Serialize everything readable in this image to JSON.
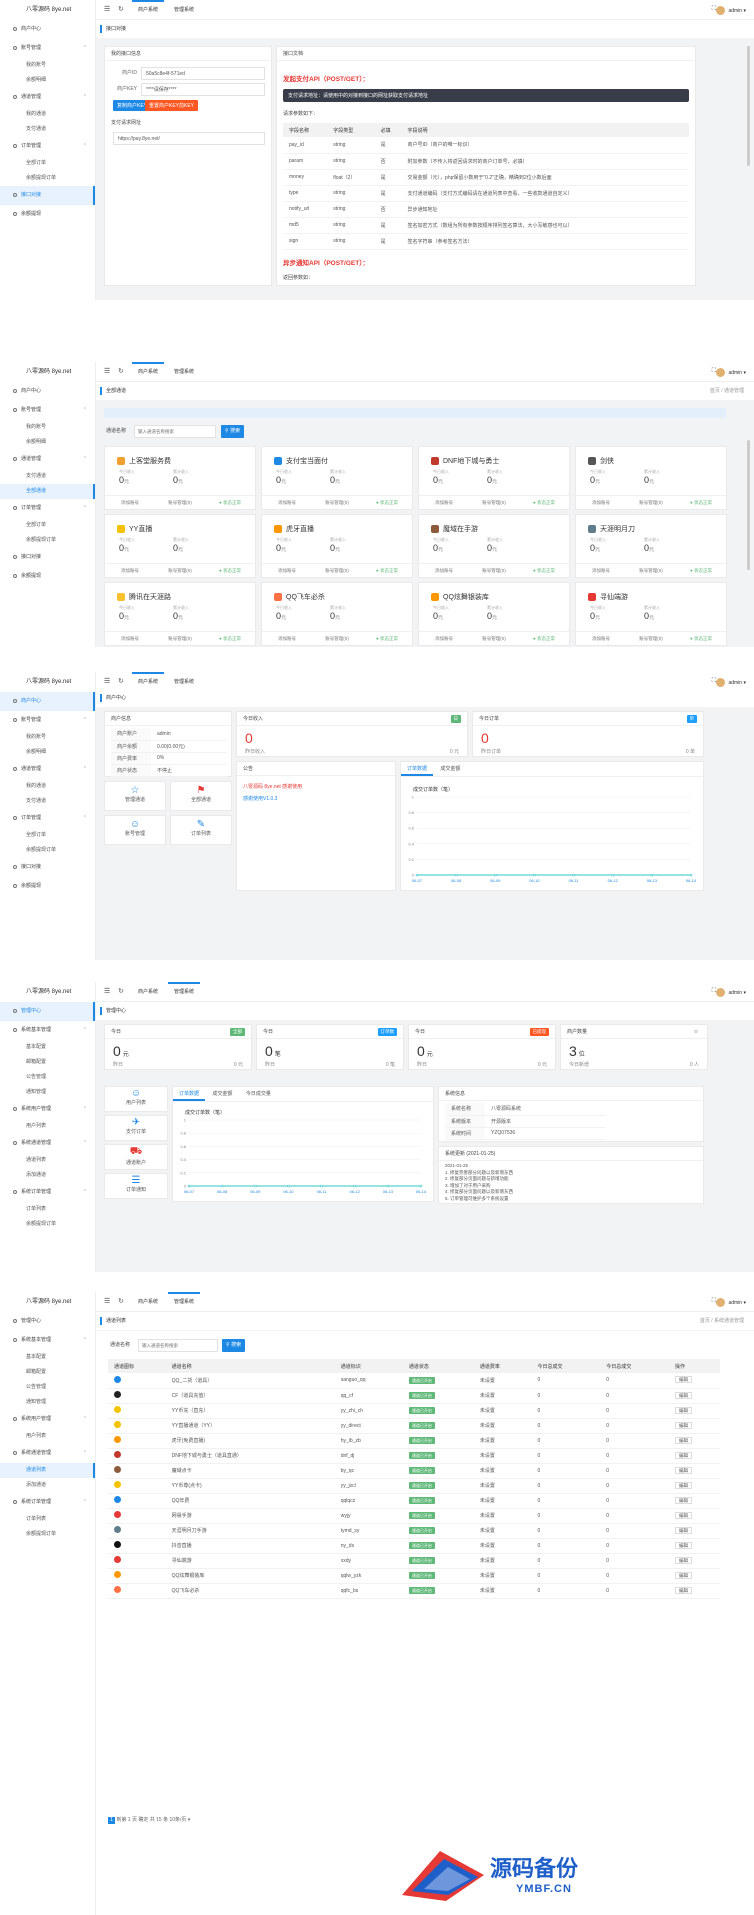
{
  "brand": "八零源码 8ye.net",
  "topbar": {
    "tab_user": "商户系统",
    "tab_admin": "管理系统",
    "user": "admin ▾"
  },
  "p1": {
    "menu": [
      "商户中心",
      "账号管理",
      "我的账号",
      "余额明细",
      "通道管理",
      "我的通道",
      "支付通道",
      "订单管理",
      "全部订单",
      "余额提现订单",
      "接口对接",
      "余额提现"
    ],
    "subheader": "接口对接",
    "info_title": "我的接口信息",
    "merchant_id_label": "商户ID",
    "merchant_id": "50a5c8e4f-571ed",
    "merchant_key_label": "商户KEY",
    "merchant_key": "****请保存****",
    "btn_copy": "复制商户KEY",
    "btn_reset": "重置商户KEY前KEY",
    "addr_title": "支付请求网址",
    "addr": "https://pay.8ye.net/",
    "doc_title": "接口文档",
    "sync_title": "发起支付API（POST/GET）：",
    "note": "支付请求地址：请使用中的对接到接口的网址获取支付请求地址",
    "params_label": "请求参数如下：",
    "cols": [
      "字段名称",
      "字段类型",
      "必填",
      "字段说明"
    ],
    "rows": [
      [
        "pay_id",
        "string",
        "是",
        "商户号ID（商户的唯一标识）"
      ],
      [
        "param",
        "string",
        "否",
        "附加参数（不传入将返回请求时的商户订单号，必填）"
      ],
      [
        "money",
        "float（2）",
        "是",
        "交易金额（元），php保留小数用于\"0.2\"正确，精确到2位小数后面"
      ],
      [
        "type",
        "string",
        "是",
        "支付通道编码（支付方式编码请在通道列表中查看，一些收款通道自定义）"
      ],
      [
        "notify_url",
        "string",
        "否",
        "异步通知地址"
      ],
      [
        "md5",
        "string",
        "是",
        "签名加密方式（数组为所有参数按顺序排列签名算法，大小写敏感也可以）"
      ],
      [
        "sign",
        "string",
        "是",
        "签名字符串（参考签名方法）"
      ]
    ],
    "async_title": "异步通知API（POST/GET）：",
    "async_label": "返回参数如：",
    "async_cols": [
      "字段名称",
      "字段类型",
      "字段说明"
    ]
  },
  "p2": {
    "menu": [
      "商户中心",
      "账号管理",
      "我的账号",
      "余额明细",
      "通道管理",
      "支付通道",
      "全部通道",
      "订单管理",
      "全部订单",
      "余额提现订单",
      "接口对接",
      "余额提现"
    ],
    "subheader": "全部通道",
    "crumb": "首页 / 通道管理",
    "search_label": "通道名称",
    "search_placeholder": "输入通道名称搜索",
    "search_btn": "搜索",
    "card_in_label": "今日收入",
    "card_total_label": "累计收入",
    "unit": "元",
    "footer": [
      "添加账号",
      "账号管理(0)",
      "● 状态正常"
    ],
    "channels": [
      {
        "name": "上客堂服务费",
        "color": "#f0a030",
        "v1": "0",
        "v2": "0"
      },
      {
        "name": "支付宝当面付",
        "color": "#1e88e5",
        "v1": "0",
        "v2": "0"
      },
      {
        "name": "DNF地下城与勇士",
        "color": "#c0392b",
        "v1": "0",
        "v2": "0"
      },
      {
        "name": "剑侠",
        "color": "#555555",
        "v1": "0",
        "v2": "0"
      },
      {
        "name": "YY直播",
        "color": "#f5c200",
        "v1": "0",
        "v2": "0"
      },
      {
        "name": "虎牙直播",
        "color": "#ff9800",
        "v1": "0",
        "v2": "0"
      },
      {
        "name": "魔域在手游",
        "color": "#8e5a3c",
        "v1": "0",
        "v2": "0"
      },
      {
        "name": "天涯明月刀",
        "color": "#607d8b",
        "v1": "0",
        "v2": "0"
      },
      {
        "name": "腾讯在天涯路",
        "color": "#fbc02d",
        "v1": "0",
        "v2": "0"
      },
      {
        "name": "QQ飞车必杀",
        "color": "#ff7043",
        "v1": "0",
        "v2": "0"
      },
      {
        "name": "QQ炫舞银装库",
        "color": "#ff9800",
        "v1": "0",
        "v2": "0"
      },
      {
        "name": "寻仙端游",
        "color": "#e53935",
        "v1": "0",
        "v2": "0"
      }
    ]
  },
  "p3": {
    "menu": [
      "商户中心",
      "账号管理",
      "我的账号",
      "余额明细",
      "通道管理",
      "我的通道",
      "支付通道",
      "订单管理",
      "全部订单",
      "余额提现订单",
      "接口对接",
      "余额提现"
    ],
    "subheader": "商户中心",
    "info_title": "商户信息",
    "info_rows": [
      [
        "商户账户",
        "admin"
      ],
      [
        "商户余额",
        "0.00(0.00元)"
      ],
      [
        "商户费率",
        "0%"
      ],
      [
        "商户状态",
        "不停止"
      ]
    ],
    "quick": [
      "管理通道",
      "全部通道",
      "账号管理",
      "订单列表"
    ],
    "income_title": "今日收入",
    "income_badge": "日",
    "income_val": "0",
    "income_left": "昨日收入",
    "income_right": "0 元",
    "order_title": "今日订单",
    "order_badge": "单",
    "order_val": "0",
    "order_left": "昨日订单",
    "order_right": "0 单",
    "notice_title": "公告",
    "notice_lines": [
      "八零源码 8ye.net 感谢使用",
      "感谢使用V1.0.3"
    ],
    "tabs": [
      "订单数据",
      "成交金额"
    ],
    "chart_data": {
      "type": "line",
      "title": "成交订单数（笔）",
      "categories": [
        "06-07",
        "06-08",
        "06-09",
        "06-10",
        "06-11",
        "06-12",
        "06-13",
        "06-14"
      ],
      "values": [
        0,
        0,
        0,
        0,
        0,
        0,
        0,
        0
      ],
      "ylim": [
        0,
        1
      ],
      "yticks": [
        "0",
        "0.2",
        "0.4",
        "0.6",
        "0.8",
        "1"
      ]
    }
  },
  "p4": {
    "menu": [
      "管理中心",
      "系统基本管理",
      "基本配置",
      "邮箱配置",
      "公告管理",
      "通知管理",
      "系统用户管理",
      "用户列表",
      "系统通道管理",
      "通道列表",
      "添加通道",
      "系统订单管理",
      "订单列表",
      "余额提现订单"
    ],
    "subheader": "管理中心",
    "stats": [
      {
        "title": "今日",
        "badge": "全部",
        "badge_color": "#5fb878",
        "val": "0",
        "unit": "元",
        "left": "昨日",
        "right": "0 元"
      },
      {
        "title": "今日",
        "badge": "订单数",
        "badge_color": "#1e9fff",
        "val": "0",
        "unit": "笔",
        "left": "昨日",
        "right": "0 笔"
      },
      {
        "title": "今日",
        "badge": "已提现",
        "badge_color": "#ff5722",
        "val": "0",
        "unit": "元",
        "left": "昨日",
        "right": "0 元"
      },
      {
        "title": "商户数量",
        "badge": "",
        "badge_color": "#ffffff",
        "val": "3",
        "unit": "位",
        "left": "今日新增",
        "right": "0 人"
      }
    ],
    "quick": [
      "用户列表",
      "支付订单",
      "通道账户",
      "订单通知"
    ],
    "tabs": [
      "订单数据",
      "成交金额",
      "今日成交量"
    ],
    "sys_title": "系统信息",
    "sys_rows": [
      [
        "系统名称",
        "八零源码系统"
      ],
      [
        "系统版本",
        "开源版本"
      ],
      [
        "系统时间",
        "YZQ07536"
      ]
    ],
    "update_title": "系统更新 (2021-01-25)",
    "update_lines": [
      "2021-01-25",
      "1. 修复完善部分问题以及新增东西",
      "2. 修复部分页面问题与新增功能",
      "3. 增加了对于用户采购",
      "4. 修复部分页面问题以及新增东西",
      "5. 订单管理可维护多个系统设置"
    ],
    "chart_data": {
      "type": "line",
      "title": "成交订单数（笔）",
      "categories": [
        "06-07",
        "06-08",
        "06-09",
        "06-10",
        "06-11",
        "06-12",
        "06-13",
        "06-14"
      ],
      "values": [
        0,
        0,
        0,
        0,
        0,
        0,
        0,
        0
      ],
      "ylim": [
        0,
        1
      ],
      "yticks": [
        "0",
        "0.2",
        "0.4",
        "0.6",
        "0.8",
        "1"
      ]
    }
  },
  "p5": {
    "menu": [
      "管理中心",
      "系统基本管理",
      "基本配置",
      "邮箱配置",
      "公告管理",
      "通知管理",
      "系统用户管理",
      "用户列表",
      "系统通道管理",
      "通道列表",
      "添加通道",
      "系统订单管理",
      "订单列表",
      "余额提现订单"
    ],
    "subheader": "通道列表",
    "crumb": "首页 / 系统通道管理",
    "search_label": "通道名称",
    "search_placeholder": "输入通道名称搜索",
    "search_btn": "搜索",
    "cols": [
      "通道图标",
      "通道名称",
      "通道标识",
      "通道状态",
      "通道费率",
      "今日总成交",
      "今日总成交",
      "操作"
    ],
    "status": "通道已开启",
    "op": "编辑",
    "rows": [
      [
        "QQ_二货（道具）",
        "sanguo_qq",
        "未设置",
        "0",
        "0"
      ],
      [
        "CF（道具充值）",
        "qq_cf",
        "未设置",
        "0",
        "0"
      ],
      [
        "YY币充（直充）",
        "yy_zhi_ch",
        "未设置",
        "0",
        "0"
      ],
      [
        "YY直播通道（YY）",
        "yy_direct",
        "未设置",
        "0",
        "0"
      ],
      [
        "虎牙(免费直播)",
        "hy_lb_zb",
        "未设置",
        "0",
        "0"
      ],
      [
        "DNF地下城与勇士（道具直通）",
        "dnf_dj",
        "未设置",
        "0",
        "0"
      ],
      [
        "魔域点卡",
        "by_qc",
        "未设置",
        "0",
        "0"
      ],
      [
        "YY币尊(点卡)",
        "yy_jxcl",
        "未设置",
        "0",
        "0"
      ],
      [
        "QQ年费",
        "qqlqcz",
        "未设置",
        "0",
        "0"
      ],
      [
        "网易手游",
        "wyjy",
        "未设置",
        "0",
        "0"
      ],
      [
        "天涯明月刀手游",
        "tymd_sy",
        "未设置",
        "0",
        "0"
      ],
      [
        "抖音直播",
        "ny_ds",
        "未设置",
        "0",
        "0"
      ],
      [
        "寻仙端游",
        "xxdy",
        "未设置",
        "0",
        "0"
      ],
      [
        "QQ炫舞银装库",
        "qqlw_yzk",
        "未设置",
        "0",
        "0"
      ],
      [
        "QQ飞车必杀",
        "qqfc_bs",
        "未设置",
        "0",
        "0"
      ]
    ],
    "pager": "到第 1 页 确定 共 15 条 10条/页 ▾"
  },
  "watermark": {
    "cn": "源码备份",
    "en": "YMBF.CN"
  }
}
